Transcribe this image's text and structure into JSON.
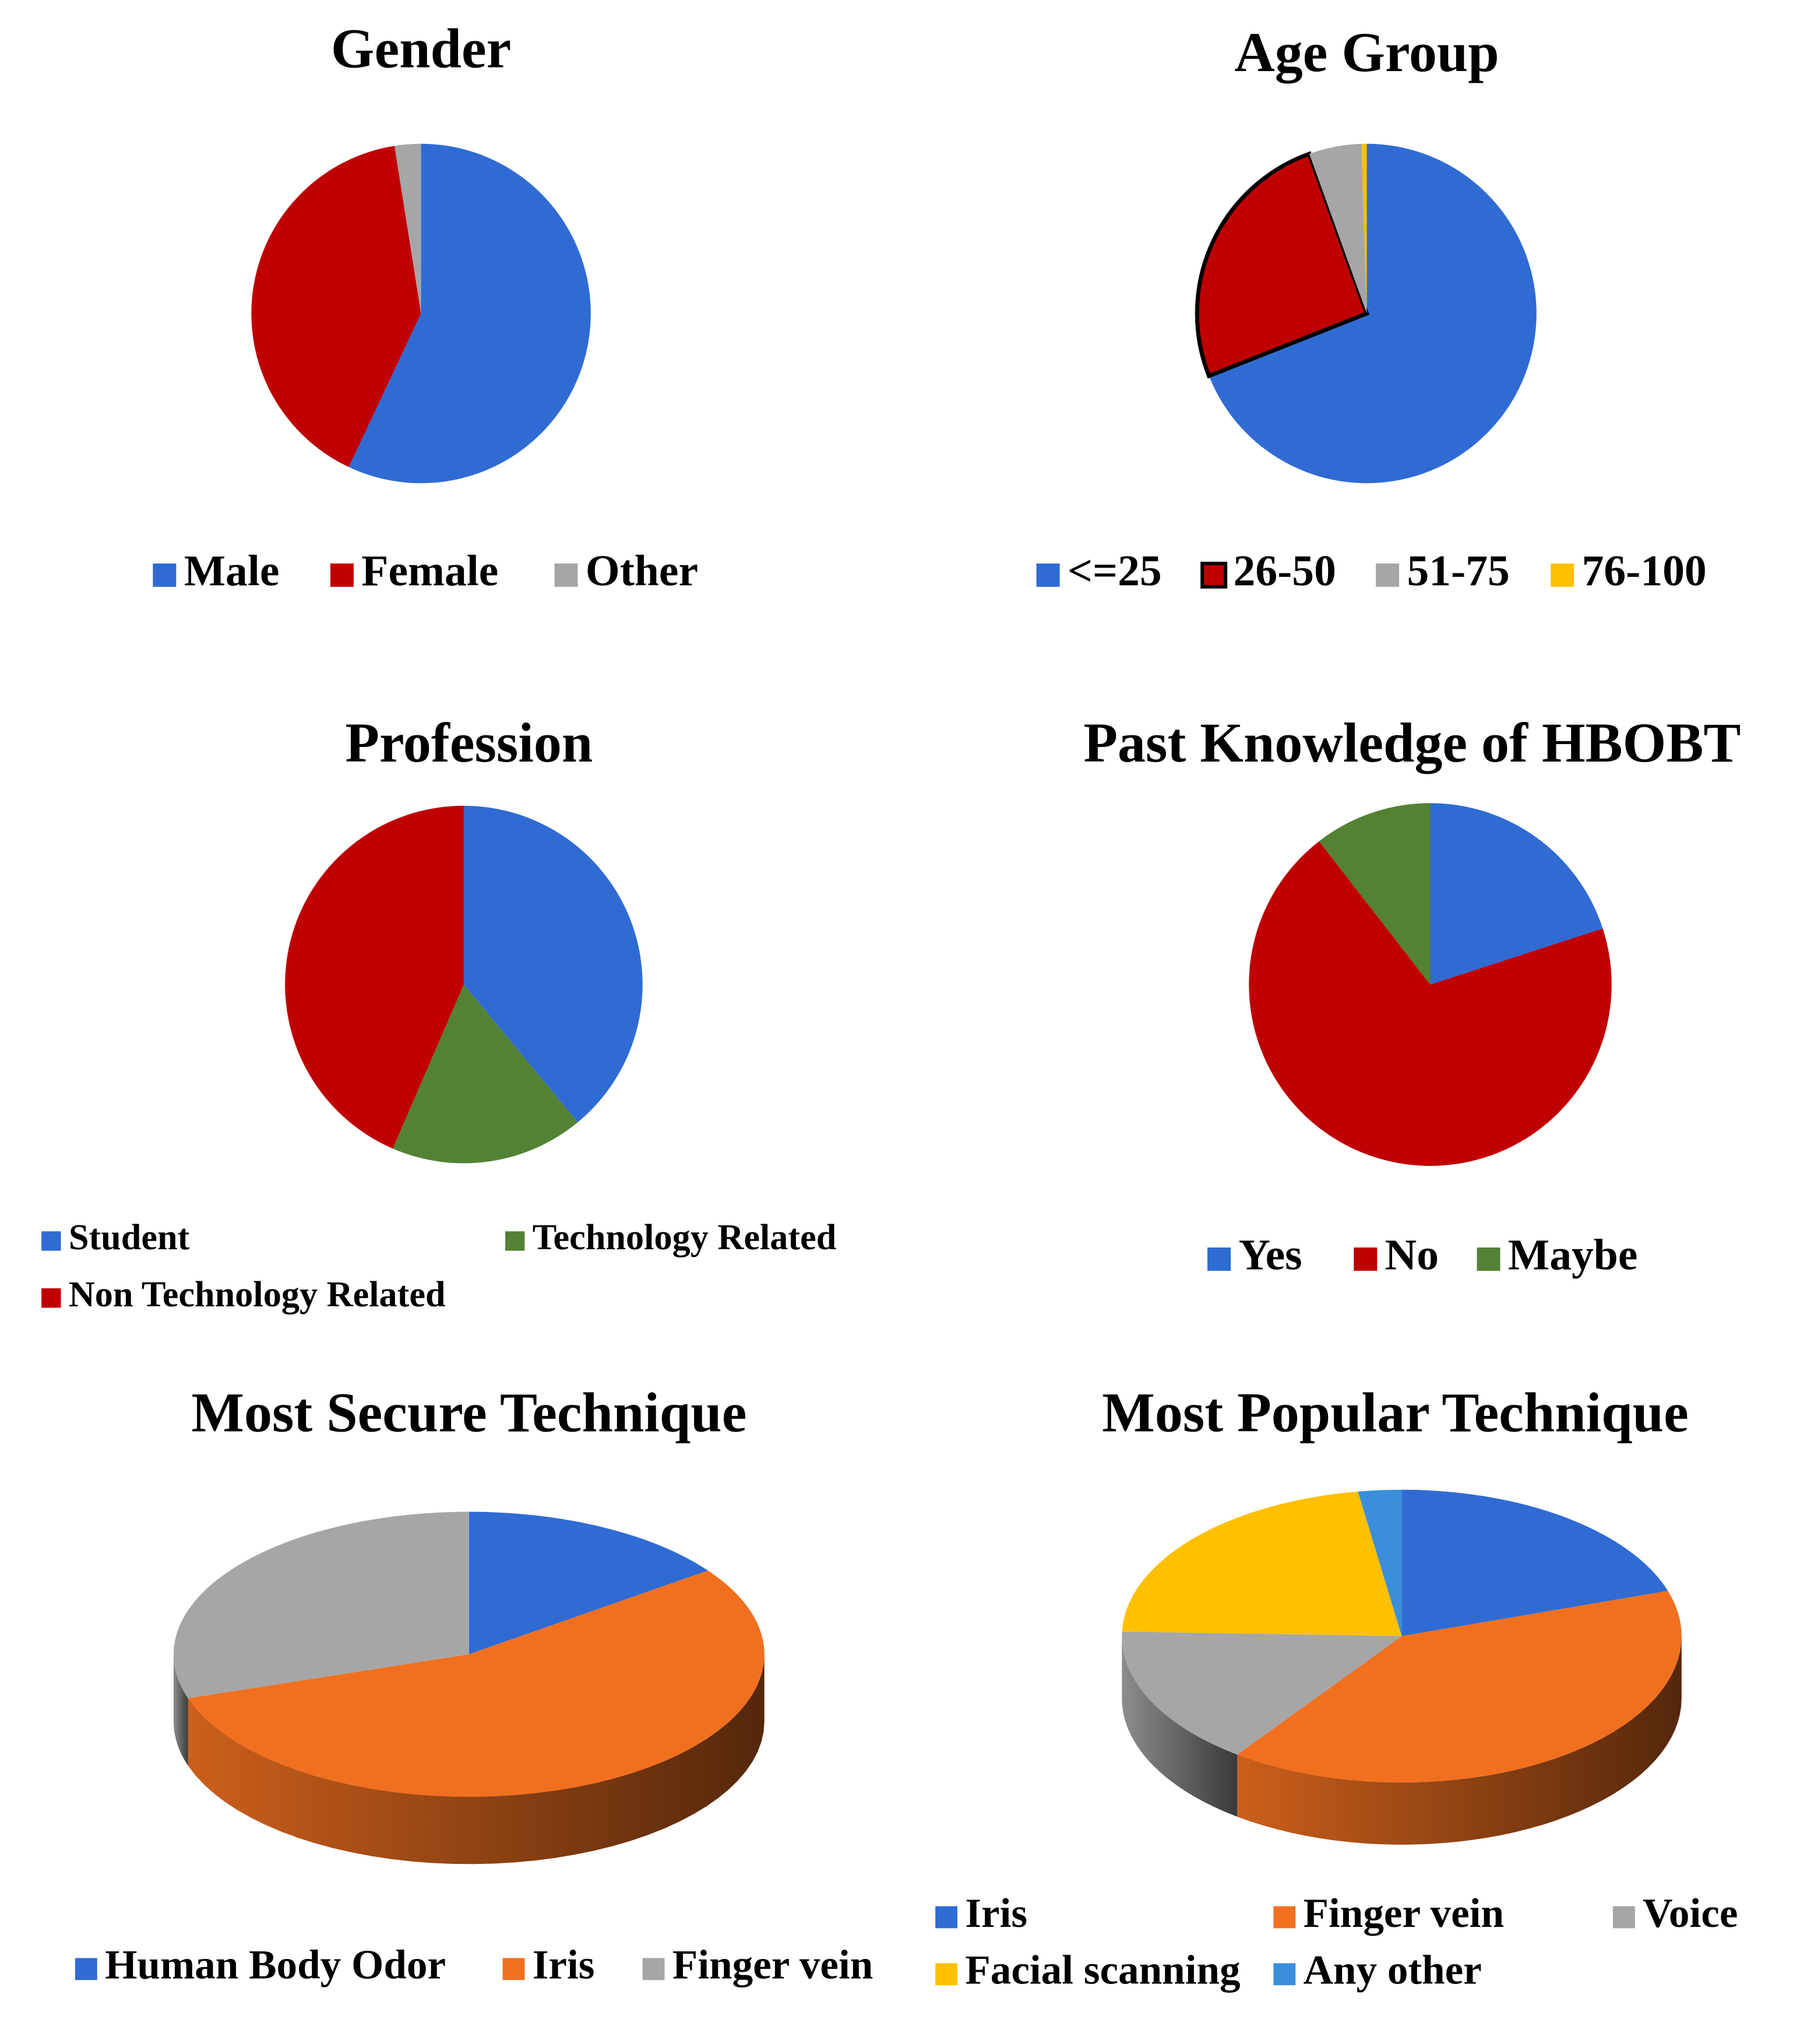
{
  "chart_data": [
    {
      "type": "pie",
      "title": "Gender",
      "legend_position": "bottom",
      "slices": [
        {
          "label": "Male",
          "value": 57,
          "color": "#2F6BD3"
        },
        {
          "label": "Female",
          "value": 40.5,
          "color": "#C00000"
        },
        {
          "label": "Other",
          "value": 2.5,
          "color": "#A6A6A6"
        }
      ]
    },
    {
      "type": "pie",
      "title": "Age Group",
      "legend_position": "bottom",
      "slices": [
        {
          "label": "<=25",
          "value": 69,
          "color": "#2F6BD3"
        },
        {
          "label": "26-50",
          "value": 25.5,
          "color": "#C00000"
        },
        {
          "label": "51-75",
          "value": 5,
          "color": "#A6A6A6"
        },
        {
          "label": "76-100",
          "value": 0.5,
          "color": "#FFC000"
        }
      ]
    },
    {
      "type": "pie",
      "title": "Profession",
      "legend_position": "bottom",
      "slices": [
        {
          "label": "Student",
          "value": 39,
          "color": "#2F6BD3"
        },
        {
          "label": "Technology Related",
          "value": 17.5,
          "color": "#548235"
        },
        {
          "label": "Non Technology Related",
          "value": 43.5,
          "color": "#C00000"
        }
      ]
    },
    {
      "type": "pie",
      "title": "Past Knowledge of HBOBT",
      "legend_position": "bottom",
      "slices": [
        {
          "label": "Yes",
          "value": 20,
          "color": "#2F6BD3"
        },
        {
          "label": "No",
          "value": 69.5,
          "color": "#C00000"
        },
        {
          "label": "Maybe",
          "value": 10.5,
          "color": "#548235"
        }
      ]
    },
    {
      "type": "pie",
      "title": "Most Secure Technique",
      "style": "3d",
      "legend_position": "bottom",
      "slices": [
        {
          "label": "Human Body Odor",
          "value": 15,
          "color": "#2F6BD3"
        },
        {
          "label": "Iris",
          "value": 55,
          "color": "#F07020"
        },
        {
          "label": "Finger vein",
          "value": 30,
          "color": "#A6A6A6"
        }
      ]
    },
    {
      "type": "pie",
      "title": "Most Popular Technique",
      "style": "3d",
      "legend_position": "bottom",
      "slices": [
        {
          "label": "Iris",
          "value": 20,
          "color": "#2F6BD3"
        },
        {
          "label": "Finger vein",
          "value": 40,
          "color": "#F07020"
        },
        {
          "label": "Voice",
          "value": 15.5,
          "color": "#A6A6A6"
        },
        {
          "label": "Facial scanning",
          "value": 22,
          "color": "#FFC000"
        },
        {
          "label": "Any other",
          "value": 2.5,
          "color": "#3A8EDB"
        }
      ]
    }
  ]
}
